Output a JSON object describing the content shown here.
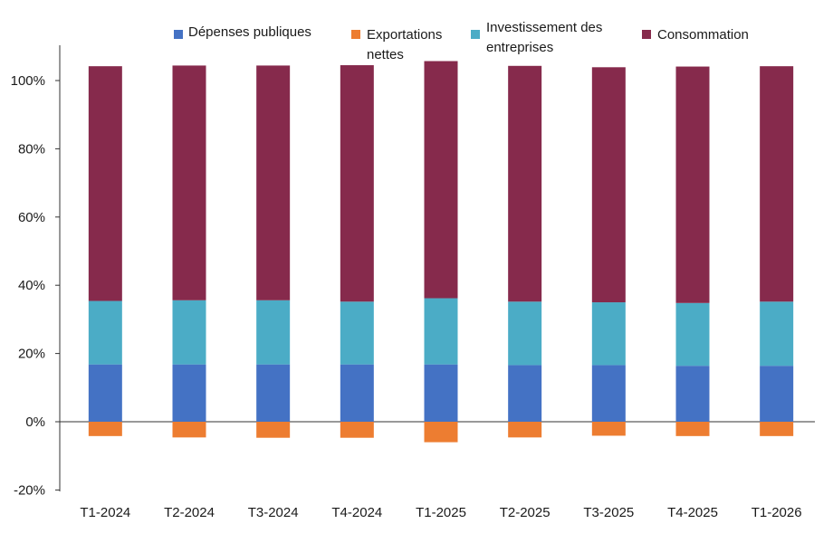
{
  "chart_data": {
    "type": "bar",
    "stacked": true,
    "categories": [
      "T1-2024",
      "T2-2024",
      "T3-2024",
      "T4-2024",
      "T1-2025",
      "T2-2025",
      "T3-2025",
      "T4-2025",
      "T1-2026"
    ],
    "series": [
      {
        "name": "Dépenses publiques",
        "color": "#4472c4",
        "values": [
          16.8,
          16.8,
          16.8,
          16.8,
          16.8,
          16.6,
          16.6,
          16.4,
          16.4
        ]
      },
      {
        "name": "Exportations nettes",
        "color": "#ed7d31",
        "values": [
          -4.2,
          -4.6,
          -4.7,
          -4.7,
          -6.0,
          -4.6,
          -4.1,
          -4.2,
          -4.2
        ]
      },
      {
        "name": "Investissement des entreprises",
        "color": "#4bacc6",
        "values": [
          18.6,
          18.8,
          18.8,
          18.4,
          19.4,
          18.6,
          18.4,
          18.4,
          18.8
        ]
      },
      {
        "name": "Consommation",
        "color": "#862a4c",
        "values": [
          68.8,
          68.8,
          68.8,
          69.3,
          69.5,
          69.1,
          68.9,
          69.3,
          69.0
        ]
      }
    ],
    "ylim": [
      -20,
      110
    ],
    "yticks": [
      "-20%",
      "0%",
      "20%",
      "40%",
      "60%",
      "80%",
      "100%"
    ],
    "ytick_values": [
      -20,
      0,
      20,
      40,
      60,
      80,
      100
    ],
    "legend_position": "top",
    "grid": false
  }
}
